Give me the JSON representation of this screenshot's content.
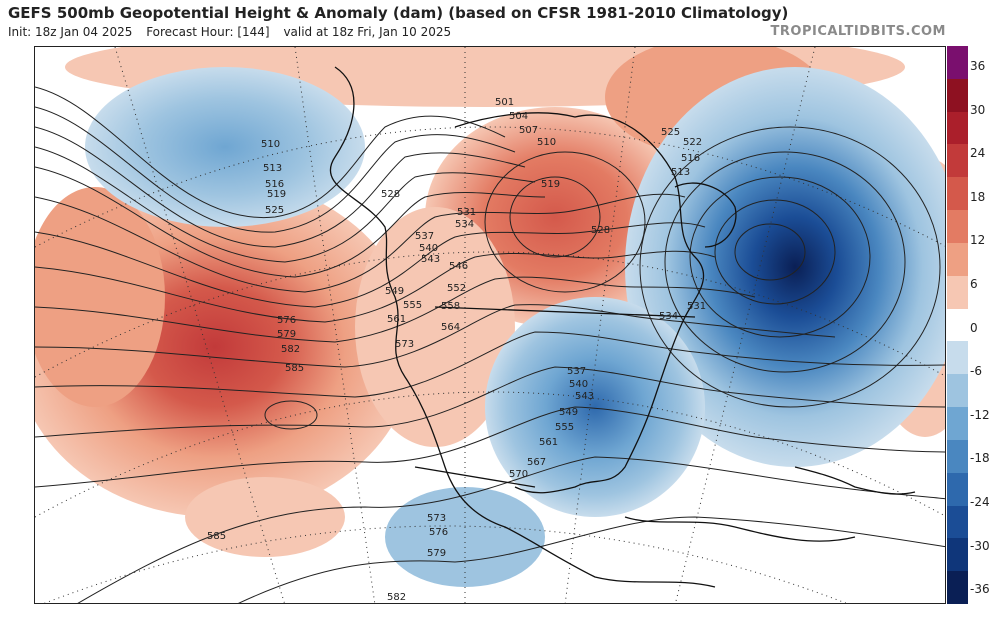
{
  "header": {
    "title": "GEFS 500mb Geopotential Height & Anomaly (dam) (based on CFSR 1981-2010 Climatology)",
    "init": "Init: 18z Jan 04 2025",
    "forecast_hour": "Forecast Hour: [144]",
    "valid": "valid at 18z Fri, Jan 10 2025"
  },
  "brand": "TROPICALTIDBITS.COM",
  "colorbar": {
    "labels": [
      "36",
      "30",
      "24",
      "18",
      "12",
      "6",
      "0",
      "-6",
      "-12",
      "-18",
      "-24",
      "-30",
      "-36"
    ],
    "colors": [
      "#7a0f6e",
      "#8e1121",
      "#ab1f2b",
      "#c23a3a",
      "#d4594b",
      "#e37b63",
      "#eea083",
      "#f6c7b3",
      "#ffffff",
      "#c7dcec",
      "#9ec4e0",
      "#6fa6d2",
      "#4a87c0",
      "#2e69ad",
      "#1b4d96",
      "#0f367a",
      "#0a1f55"
    ]
  },
  "contour_labels": {
    "west": [
      "510",
      "513",
      "516",
      "519",
      "525",
      "528",
      "537",
      "540",
      "543",
      "546",
      "549",
      "552",
      "555",
      "558",
      "561",
      "564",
      "573",
      "576",
      "579",
      "582",
      "585",
      "531",
      "534"
    ],
    "east": [
      "501",
      "504",
      "507",
      "510",
      "513",
      "516",
      "519",
      "522",
      "525",
      "528",
      "531",
      "534",
      "537",
      "540",
      "543",
      "549",
      "555",
      "561",
      "567",
      "570"
    ],
    "south": [
      "573",
      "576",
      "579",
      "582",
      "585",
      "570",
      "567"
    ]
  }
}
